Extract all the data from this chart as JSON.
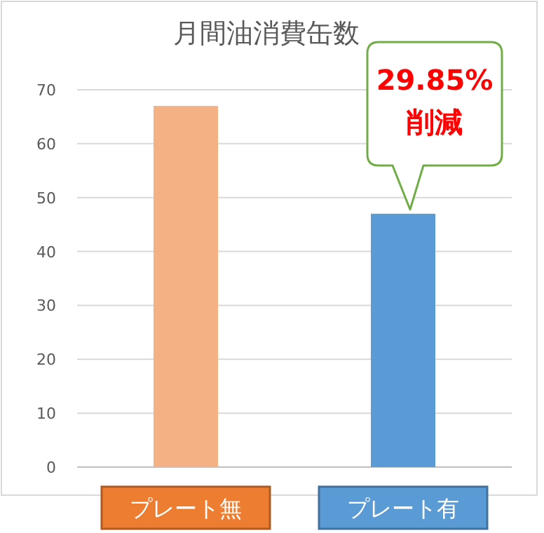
{
  "chart_data": {
    "type": "bar",
    "title": "月間油消費缶数",
    "categories": [
      "プレート無",
      "プレート有"
    ],
    "values": [
      67,
      47
    ],
    "colors": [
      "#f4b183",
      "#5b9bd5"
    ],
    "ylim": [
      0,
      70
    ],
    "yticks": [
      0,
      10,
      20,
      30,
      40,
      50,
      60,
      70
    ],
    "grid": "y",
    "annotations": [
      {
        "text": "29.85% 削減",
        "x": "プレート有",
        "y": 47
      }
    ]
  }
}
